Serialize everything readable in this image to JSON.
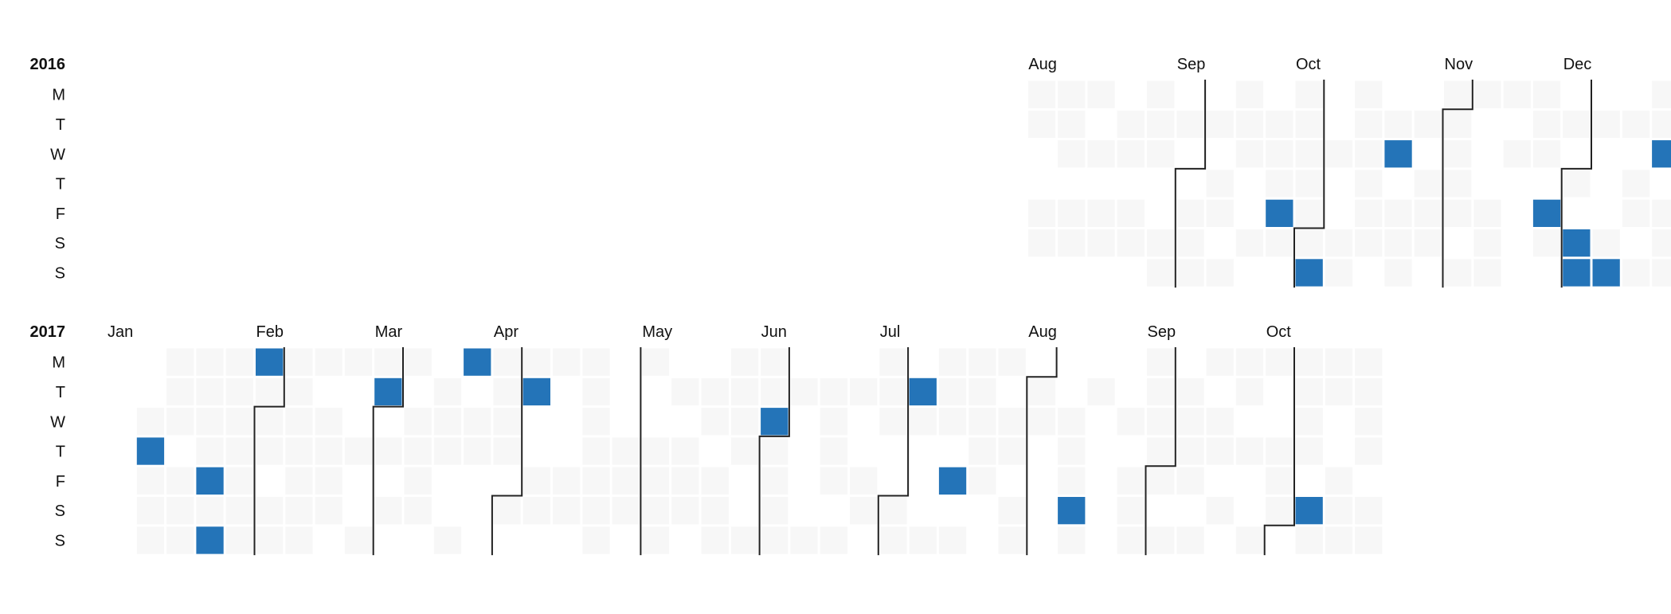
{
  "chart_data": {
    "type": "heatmap",
    "title": "",
    "day_labels": [
      "M",
      "T",
      "W",
      "T",
      "F",
      "S",
      "S"
    ],
    "colors": {
      "empty": "#f7f7f7",
      "active": "#2474b8",
      "boundary": "#222222"
    },
    "years": [
      {
        "label": "2016",
        "months": [
          {
            "label": "Aug",
            "week": 31
          },
          {
            "label": "Sep",
            "week": 36
          },
          {
            "label": "Oct",
            "week": 40
          },
          {
            "label": "Nov",
            "week": 45
          },
          {
            "label": "Dec",
            "week": 49
          }
        ],
        "boundaries": [
          {
            "week": 36,
            "day": 3
          },
          {
            "week": 40,
            "day": 5
          },
          {
            "week": 45,
            "day": 1
          },
          {
            "week": 49,
            "day": 3
          }
        ],
        "range": {
          "start_week": 31,
          "end_week": 53
        },
        "active": [
          {
            "week": 39,
            "day": 4
          },
          {
            "week": 40,
            "day": 6
          },
          {
            "week": 43,
            "day": 2
          },
          {
            "week": 48,
            "day": 4
          },
          {
            "week": 49,
            "day": 5
          },
          {
            "week": 49,
            "day": 6
          },
          {
            "week": 50,
            "day": 6
          },
          {
            "week": 52,
            "day": 2
          }
        ]
      },
      {
        "label": "2017",
        "months": [
          {
            "label": "Jan",
            "week": 0
          },
          {
            "label": "Feb",
            "week": 5
          },
          {
            "label": "Mar",
            "week": 9
          },
          {
            "label": "Apr",
            "week": 13
          },
          {
            "label": "May",
            "week": 18
          },
          {
            "label": "Jun",
            "week": 22
          },
          {
            "label": "Jul",
            "week": 26
          },
          {
            "label": "Aug",
            "week": 31
          },
          {
            "label": "Sep",
            "week": 35
          },
          {
            "label": "Oct",
            "week": 39
          }
        ],
        "boundaries": [
          {
            "week": 5,
            "day": 2
          },
          {
            "week": 9,
            "day": 2
          },
          {
            "week": 13,
            "day": 5
          },
          {
            "week": 18,
            "day": 0
          },
          {
            "week": 22,
            "day": 3
          },
          {
            "week": 26,
            "day": 5
          },
          {
            "week": 31,
            "day": 1
          },
          {
            "week": 35,
            "day": 4
          },
          {
            "week": 39,
            "day": 6
          }
        ],
        "range": {
          "start_week": 1,
          "end_week": 42
        },
        "active": [
          {
            "week": 1,
            "day": 3
          },
          {
            "week": 3,
            "day": 4
          },
          {
            "week": 3,
            "day": 6
          },
          {
            "week": 5,
            "day": 0
          },
          {
            "week": 9,
            "day": 1
          },
          {
            "week": 12,
            "day": 0
          },
          {
            "week": 14,
            "day": 1
          },
          {
            "week": 22,
            "day": 2
          },
          {
            "week": 27,
            "day": 1
          },
          {
            "week": 28,
            "day": 4
          },
          {
            "week": 32,
            "day": 5
          },
          {
            "week": 40,
            "day": 5
          }
        ]
      }
    ]
  }
}
